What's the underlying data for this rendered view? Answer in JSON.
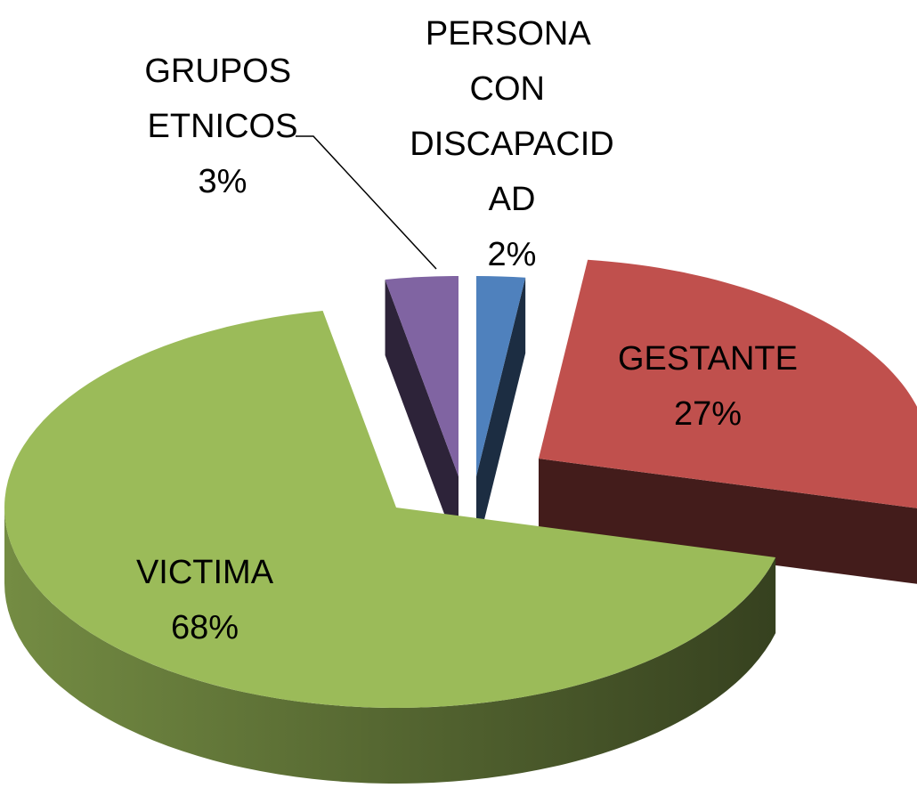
{
  "chart_data": {
    "type": "pie",
    "categories": [
      "PERSONA CON DISCAPACIDAD",
      "GESTANTE",
      "VICTIMA",
      "GRUPOS ETNICOS"
    ],
    "values": [
      2,
      27,
      68,
      3
    ],
    "value_labels": [
      "2%",
      "27%",
      "68%",
      "3%"
    ],
    "colors": [
      "#4f81bd",
      "#c0504d",
      "#9bbb59",
      "#8064a2"
    ],
    "three_d": true,
    "exploded": true
  }
}
